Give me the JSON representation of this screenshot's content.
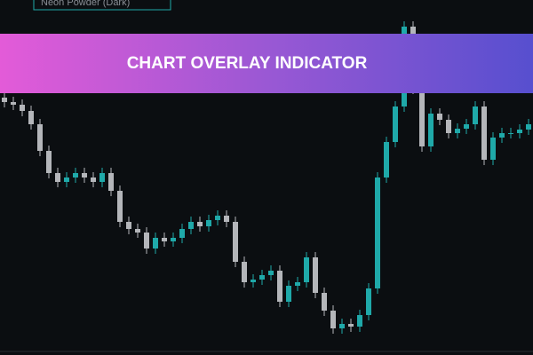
{
  "chart_data": {
    "type": "candlestick",
    "legend_label": "Neon Powder (Dark)",
    "title": "CHART OVERLAY INDICATOR",
    "up_color": "#1fa9a9",
    "down_color": "#b4b6ba",
    "ylim": [
      0,
      400
    ],
    "open": [
      290,
      285,
      282,
      275,
      260,
      230,
      205,
      195,
      200,
      205,
      200,
      195,
      205,
      185,
      150,
      142,
      138,
      120,
      132,
      128,
      132,
      142,
      150,
      145,
      152,
      157,
      150,
      105,
      82,
      85,
      90,
      95,
      60,
      78,
      82,
      110,
      70,
      50,
      30,
      35,
      32,
      45,
      75,
      200,
      240,
      280,
      370,
      300,
      235,
      272,
      265,
      250,
      255,
      260,
      280,
      220,
      245,
      250,
      250,
      254
    ],
    "high": [
      296,
      291,
      288,
      281,
      266,
      236,
      211,
      206,
      211,
      211,
      206,
      211,
      211,
      191,
      156,
      148,
      144,
      138,
      138,
      138,
      148,
      156,
      156,
      158,
      163,
      163,
      156,
      111,
      91,
      96,
      101,
      101,
      84,
      88,
      116,
      116,
      76,
      56,
      41,
      41,
      51,
      81,
      206,
      246,
      286,
      376,
      376,
      306,
      278,
      278,
      271,
      261,
      266,
      286,
      286,
      251,
      256,
      256,
      260,
      266
    ],
    "low": [
      279,
      276,
      269,
      254,
      224,
      199,
      189,
      189,
      194,
      194,
      189,
      189,
      179,
      144,
      136,
      132,
      114,
      114,
      122,
      122,
      126,
      136,
      139,
      139,
      146,
      144,
      99,
      76,
      76,
      79,
      84,
      54,
      54,
      72,
      76,
      64,
      44,
      24,
      24,
      26,
      26,
      39,
      69,
      194,
      234,
      274,
      294,
      229,
      229,
      259,
      244,
      244,
      249,
      254,
      214,
      214,
      239,
      244,
      244,
      248
    ],
    "close": [
      285,
      282,
      275,
      260,
      230,
      205,
      195,
      200,
      205,
      200,
      195,
      205,
      185,
      150,
      142,
      138,
      120,
      132,
      128,
      132,
      142,
      150,
      145,
      152,
      157,
      150,
      105,
      82,
      85,
      90,
      95,
      60,
      78,
      82,
      110,
      70,
      50,
      30,
      35,
      32,
      45,
      75,
      200,
      240,
      280,
      370,
      300,
      235,
      272,
      265,
      250,
      255,
      260,
      280,
      220,
      245,
      250,
      250,
      254,
      260
    ]
  }
}
